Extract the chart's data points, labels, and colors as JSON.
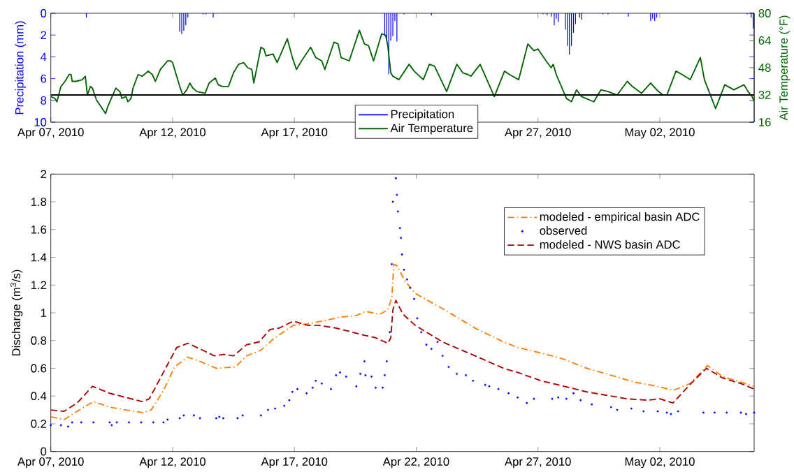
{
  "chart_data": [
    {
      "type": "line",
      "ylabel": "Precipitation (mm)",
      "y2label": "Air Temperature (°F)",
      "xlim": [
        "2010-04-07",
        "2010-05-05T21:00"
      ],
      "xticks": [
        {
          "value": "2010-04-07",
          "label": "Apr 07, 2010"
        },
        {
          "value": "2010-04-12",
          "label": "Apr 12, 2010"
        },
        {
          "value": "2010-04-17",
          "label": "Apr 17, 2010"
        },
        {
          "value": "2010-04-22",
          "label": null
        },
        {
          "value": "2010-04-27",
          "label": "Apr 27, 2010"
        },
        {
          "value": "2010-05-02",
          "label": "May 02, 2010"
        }
      ],
      "ylim": [
        10,
        0
      ],
      "yticks": [
        0,
        2,
        4,
        6,
        8,
        10
      ],
      "y2lim": [
        16,
        80
      ],
      "y2ticks": [
        16,
        32,
        48,
        64,
        80
      ],
      "series": [
        {
          "name": "Precipitation",
          "type": "bar",
          "color": "#0000ff",
          "x": [
            "2010-04-08T11:00",
            "2010-04-12T07:00",
            "2010-04-12T09:00",
            "2010-04-12T11:00",
            "2010-04-12T13:00",
            "2010-04-12T15:00",
            "2010-04-13T06:00",
            "2010-04-13T09:00",
            "2010-04-13T16:00",
            "2010-04-20T17:00",
            "2010-04-20T19:00",
            "2010-04-20T21:00",
            "2010-04-20T23:00",
            "2010-04-21T01:00",
            "2010-04-21T03:00",
            "2010-04-21T05:00",
            "2010-04-21T12:00",
            "2010-04-22T15:00",
            "2010-04-27T05:00",
            "2010-04-27T09:00",
            "2010-04-27T13:00",
            "2010-04-27T16:00",
            "2010-04-27T18:00",
            "2010-04-27T20:00",
            "2010-04-28T03:00",
            "2010-04-28T05:00",
            "2010-04-28T07:00",
            "2010-04-28T09:00",
            "2010-04-28T11:00",
            "2010-04-28T13:00",
            "2010-04-28T17:00",
            "2010-04-28T19:00",
            "2010-04-29T16:00",
            "2010-04-29T21:00",
            "2010-04-30T17:00",
            "2010-05-01T15:00",
            "2010-05-01T17:00",
            "2010-05-01T19:00",
            "2010-05-01T21:00",
            "2010-05-05T14:00",
            "2010-05-05T18:00",
            "2010-05-05T20:00"
          ],
          "values": [
            0.4,
            1.7,
            1.9,
            1.6,
            1.1,
            0.4,
            0.1,
            0.1,
            0.4,
            2.1,
            2.6,
            5.6,
            2.5,
            2.1,
            0.7,
            2.6,
            0.1,
            0.2,
            0.1,
            0.2,
            0.3,
            1.1,
            0.5,
            0.8,
            1.5,
            3.0,
            3.8,
            3.0,
            1.8,
            1.0,
            0.4,
            0.6,
            0.1,
            0.1,
            0.3,
            0.7,
            0.5,
            0.7,
            0.4,
            0.1,
            0.4,
            1.4
          ]
        },
        {
          "name": "Air Temperature",
          "axis": "y2",
          "color": "#006400",
          "x": [
            "2010-04-07T00:00",
            "2010-04-07T04:00",
            "2010-04-07T06:00",
            "2010-04-07T10:00",
            "2010-04-07T14:00",
            "2010-04-07T18:00",
            "2010-04-07T20:00",
            "2010-04-07T21:00",
            "2010-04-08T01:00",
            "2010-04-08T07:00",
            "2010-04-08T10:00",
            "2010-04-08T12:00",
            "2010-04-08T15:00",
            "2010-04-08T17:00",
            "2010-04-08T21:00",
            "2010-04-09T06:00",
            "2010-04-09T08:00",
            "2010-04-09T16:00",
            "2010-04-09T20:00",
            "2010-04-09T22:00",
            "2010-04-10T02:00",
            "2010-04-10T04:00",
            "2010-04-10T07:00",
            "2010-04-10T09:00",
            "2010-04-10T14:00",
            "2010-04-10T18:00",
            "2010-04-11T00:00",
            "2010-04-11T04:00",
            "2010-04-11T07:00",
            "2010-04-11T12:00",
            "2010-04-11T19:00",
            "2010-04-11T22:00",
            "2010-04-12T00:00",
            "2010-04-12T04:00",
            "2010-04-12T07:00",
            "2010-04-12T10:00",
            "2010-04-12T14:00",
            "2010-04-12T17:00",
            "2010-04-12T20:00",
            "2010-04-13T00:00",
            "2010-04-13T08:00",
            "2010-04-13T12:00",
            "2010-04-13T18:00",
            "2010-04-13T21:00",
            "2010-04-14T01:00",
            "2010-04-14T07:00",
            "2010-04-14T12:00",
            "2010-04-14T17:00",
            "2010-04-14T22:00",
            "2010-04-15T02:00",
            "2010-04-15T06:00",
            "2010-04-15T08:00",
            "2010-04-15T15:00",
            "2010-04-15T18:00",
            "2010-04-15T20:00",
            "2010-04-16T03:00",
            "2010-04-16T07:00",
            "2010-04-16T17:00",
            "2010-04-16T22:00",
            "2010-04-17T02:00",
            "2010-04-17T07:00",
            "2010-04-17T16:00",
            "2010-04-17T21:00",
            "2010-04-18T03:00",
            "2010-04-18T06:00",
            "2010-04-18T15:00",
            "2010-04-18T19:00",
            "2010-04-18T22:00",
            "2010-04-19T06:00",
            "2010-04-19T16:00",
            "2010-04-19T21:00",
            "2010-04-20T01:00",
            "2010-04-20T06:00",
            "2010-04-20T14:00",
            "2010-04-20T18:00",
            "2010-04-20T20:00",
            "2010-04-20T23:00",
            "2010-04-21T01:00",
            "2010-04-21T07:00",
            "2010-04-21T17:00",
            "2010-04-21T22:00",
            "2010-04-22T07:00",
            "2010-04-22T13:00",
            "2010-04-22T18:00",
            "2010-04-23T06:00",
            "2010-04-23T16:00",
            "2010-04-23T22:00",
            "2010-04-24T03:00",
            "2010-04-24T06:00",
            "2010-04-24T15:00",
            "2010-04-25T05:00",
            "2010-04-25T15:00",
            "2010-04-25T20:00",
            "2010-04-26T05:00",
            "2010-04-26T14:00",
            "2010-04-26T20:00",
            "2010-04-27T00:00",
            "2010-04-27T08:00",
            "2010-04-27T13:00",
            "2010-04-27T15:00",
            "2010-04-27T18:00",
            "2010-04-28T04:00",
            "2010-04-28T09:00",
            "2010-04-28T14:00",
            "2010-04-28T19:00",
            "2010-04-29T07:00",
            "2010-04-29T14:00",
            "2010-04-29T21:00",
            "2010-04-30T06:00",
            "2010-04-30T16:00",
            "2010-04-30T21:00",
            "2010-05-01T06:00",
            "2010-05-01T15:00",
            "2010-05-01T21:00",
            "2010-05-02T03:00",
            "2010-05-02T07:00",
            "2010-05-02T16:00",
            "2010-05-02T22:00",
            "2010-05-03T06:00",
            "2010-05-03T16:00",
            "2010-05-03T20:00",
            "2010-05-04T07:00",
            "2010-05-04T16:00",
            "2010-05-05T01:00",
            "2010-05-05T11:00",
            "2010-05-05T15:00",
            "2010-05-05T19:00",
            "2010-05-05T21:00"
          ],
          "values": [
            31,
            30,
            28,
            37,
            40,
            44,
            44,
            40,
            40,
            41,
            43,
            32,
            37,
            36,
            29,
            21,
            25,
            36,
            34,
            30,
            31,
            28,
            30,
            36,
            44,
            43,
            46,
            44,
            40,
            47,
            52,
            52,
            51,
            43,
            37,
            32,
            35,
            39,
            36,
            34,
            33,
            39,
            42,
            38,
            37,
            37,
            45,
            50,
            51,
            48,
            47,
            39,
            60,
            59,
            55,
            56,
            51,
            65,
            54,
            47,
            52,
            60,
            54,
            52,
            47,
            63,
            62,
            54,
            52,
            70,
            62,
            61,
            52,
            68,
            67,
            61,
            45,
            43,
            41,
            50,
            46,
            41,
            50,
            49,
            34,
            50,
            45,
            44,
            43,
            50,
            31,
            46,
            44,
            41,
            62,
            58,
            59,
            52,
            48,
            50,
            44,
            30,
            28,
            35,
            31,
            28,
            35,
            34,
            32,
            40,
            37,
            33,
            39,
            35,
            32,
            32,
            46,
            44,
            41,
            54,
            41,
            24,
            38,
            35,
            38,
            34,
            31,
            28
          ]
        }
      ],
      "ref_lines": [
        {
          "axis": "y2",
          "value": 32,
          "color": "#000000"
        }
      ],
      "legend": "bottom"
    },
    {
      "type": "line",
      "ylabel": "Discharge (m$^{3}$/s)",
      "xlim": [
        "2010-04-07",
        "2010-05-05T21:00"
      ],
      "xticks": [
        {
          "value": "2010-04-07",
          "label": "Apr 07, 2010"
        },
        {
          "value": "2010-04-12",
          "label": "Apr 12, 2010"
        },
        {
          "value": "2010-04-17",
          "label": "Apr 17, 2010"
        },
        {
          "value": "2010-04-22",
          "label": "Apr 22, 2010"
        },
        {
          "value": "2010-04-27",
          "label": "Apr 27, 2010"
        },
        {
          "value": "2010-05-02",
          "label": "May 02, 2010"
        }
      ],
      "ylim": [
        0,
        2
      ],
      "yticks": [
        0,
        0.2,
        0.4,
        0.6,
        0.8,
        1,
        1.2,
        1.4,
        1.6,
        1.8,
        2
      ],
      "series": [
        {
          "name": "modeled - empirical basin ADC",
          "line_style": "dashdot",
          "color": "#ff8000",
          "x": [
            "2010-04-07T00:00",
            "2010-04-07T13:00",
            "2010-04-08T02:00",
            "2010-04-08T18:00",
            "2010-04-09T10:00",
            "2010-04-10T02:00",
            "2010-04-10T19:00",
            "2010-04-11T03:00",
            "2010-04-11T15:00",
            "2010-04-12T02:00",
            "2010-04-12T15:00",
            "2010-04-13T03:00",
            "2010-04-13T19:00",
            "2010-04-14T14:00",
            "2010-04-15T01:00",
            "2010-04-15T15:00",
            "2010-04-16T03:00",
            "2010-04-16T09:00",
            "2010-04-16T23:00",
            "2010-04-17T13:00",
            "2010-04-18T03:00",
            "2010-04-18T23:00",
            "2010-04-19T13:00",
            "2010-04-19T22:00",
            "2010-04-20T12:00",
            "2010-04-20T20:00",
            "2010-04-21T00:00",
            "2010-04-21T02:00",
            "2010-04-21T05:00",
            "2010-04-21T13:00",
            "2010-04-21T23:00",
            "2010-04-23T02:00",
            "2010-04-24T10:00",
            "2010-04-25T14:00",
            "2010-04-26T04:00",
            "2010-04-27T03:00",
            "2010-04-28T00:00",
            "2010-04-29T00:00",
            "2010-04-30T00:00",
            "2010-04-30T23:00",
            "2010-05-01T22:00",
            "2010-05-02T13:00",
            "2010-05-03T06:00",
            "2010-05-03T23:00",
            "2010-05-04T14:00",
            "2010-05-05T08:00",
            "2010-05-05T21:00"
          ],
          "values": [
            0.25,
            0.23,
            0.29,
            0.36,
            0.32,
            0.3,
            0.28,
            0.3,
            0.44,
            0.61,
            0.68,
            0.65,
            0.6,
            0.61,
            0.69,
            0.73,
            0.81,
            0.84,
            0.91,
            0.92,
            0.94,
            0.97,
            0.98,
            1.01,
            0.99,
            1.02,
            1.11,
            1.35,
            1.34,
            1.23,
            1.14,
            1.03,
            0.89,
            0.79,
            0.75,
            0.71,
            0.67,
            0.6,
            0.55,
            0.5,
            0.47,
            0.44,
            0.49,
            0.62,
            0.54,
            0.5,
            0.47
          ]
        },
        {
          "name": "observed",
          "type": "scatter",
          "marker": "circle",
          "color": "#0000ff",
          "x": [
            "2010-04-07T00:00",
            "2010-04-07T10:00",
            "2010-04-07T17:00",
            "2010-04-07T21:00",
            "2010-04-08T06:00",
            "2010-04-08T18:00",
            "2010-04-09T10:00",
            "2010-04-09T12:00",
            "2010-04-09T17:00",
            "2010-04-10T05:00",
            "2010-04-10T17:00",
            "2010-04-11T05:00",
            "2010-04-11T15:00",
            "2010-04-11T19:00",
            "2010-04-12T07:00",
            "2010-04-12T11:00",
            "2010-04-12T21:00",
            "2010-04-13T03:00",
            "2010-04-13T19:00",
            "2010-04-13T22:00",
            "2010-04-14T02:00",
            "2010-04-14T16:00",
            "2010-04-14T21:00",
            "2010-04-15T15:00",
            "2010-04-15T22:00",
            "2010-04-16T05:00",
            "2010-04-16T14:00",
            "2010-04-16T19:00",
            "2010-04-16T22:00",
            "2010-04-17T03:00",
            "2010-04-17T12:00",
            "2010-04-17T18:00",
            "2010-04-17T21:00",
            "2010-04-18T03:00",
            "2010-04-18T12:00",
            "2010-04-18T17:00",
            "2010-04-18T21:00",
            "2010-04-19T03:00",
            "2010-04-19T13:00",
            "2010-04-19T17:00",
            "2010-04-19T21:00",
            "2010-04-19T22:00",
            "2010-04-20T04:00",
            "2010-04-20T08:00",
            "2010-04-20T15:00",
            "2010-04-20T17:00",
            "2010-04-20T19:00",
            "2010-04-20T22:00",
            "2010-04-21T00:00",
            "2010-04-21T01:00",
            "2010-04-21T04:00",
            "2010-04-21T05:00",
            "2010-04-21T06:00",
            "2010-04-21T08:00",
            "2010-04-21T09:00",
            "2010-04-21T10:00",
            "2010-04-21T12:00",
            "2010-04-21T15:00",
            "2010-04-21T18:00",
            "2010-04-21T22:00",
            "2010-04-22T01:00",
            "2010-04-22T05:00",
            "2010-04-22T10:00",
            "2010-04-22T15:00",
            "2010-04-22T21:00",
            "2010-04-23T02:00",
            "2010-04-23T08:00",
            "2010-04-23T16:00",
            "2010-04-24T01:00",
            "2010-04-24T08:00",
            "2010-04-24T20:00",
            "2010-04-25T00:00",
            "2010-04-25T09:00",
            "2010-04-25T19:00",
            "2010-04-26T04:00",
            "2010-04-26T13:00",
            "2010-04-26T20:00",
            "2010-04-27T14:00",
            "2010-04-27T20:00",
            "2010-04-28T04:00",
            "2010-04-28T11:00",
            "2010-04-28T18:00",
            "2010-04-29T05:00",
            "2010-04-30T00:00",
            "2010-04-30T06:00",
            "2010-04-30T20:00",
            "2010-05-01T08:00",
            "2010-05-01T22:00",
            "2010-05-02T07:00",
            "2010-05-02T11:00",
            "2010-05-02T18:00",
            "2010-05-03T19:00",
            "2010-05-04T06:00",
            "2010-05-04T18:00",
            "2010-05-05T08:00",
            "2010-05-05T13:00",
            "2010-05-05T21:00"
          ],
          "values": [
            0.19,
            0.19,
            0.18,
            0.21,
            0.21,
            0.21,
            0.21,
            0.19,
            0.21,
            0.21,
            0.21,
            0.21,
            0.21,
            0.23,
            0.24,
            0.26,
            0.26,
            0.24,
            0.24,
            0.25,
            0.24,
            0.24,
            0.26,
            0.26,
            0.3,
            0.31,
            0.33,
            0.37,
            0.43,
            0.45,
            0.42,
            0.46,
            0.51,
            0.49,
            0.45,
            0.55,
            0.57,
            0.54,
            0.47,
            0.56,
            0.65,
            0.55,
            0.54,
            0.46,
            0.46,
            0.55,
            0.65,
            0.86,
            1.35,
            1.8,
            1.97,
            1.85,
            1.73,
            1.61,
            1.54,
            1.42,
            1.31,
            1.24,
            1.18,
            1.1,
            0.96,
            0.86,
            0.77,
            0.74,
            0.79,
            0.69,
            0.61,
            0.56,
            0.55,
            0.51,
            0.48,
            0.47,
            0.45,
            0.42,
            0.39,
            0.35,
            0.38,
            0.38,
            0.39,
            0.38,
            0.42,
            0.37,
            0.34,
            0.32,
            0.3,
            0.31,
            0.29,
            0.29,
            0.28,
            0.27,
            0.29,
            0.28,
            0.28,
            0.28,
            0.28,
            0.27,
            0.28
          ]
        },
        {
          "name": "modeled - NWS basin ADC",
          "line_style": "dashed",
          "color": "#aa0000",
          "x": [
            "2010-04-07T00:00",
            "2010-04-07T13:00",
            "2010-04-08T02:00",
            "2010-04-08T17:00",
            "2010-04-09T10:00",
            "2010-04-10T02:00",
            "2010-04-10T18:00",
            "2010-04-11T01:00",
            "2010-04-11T12:00",
            "2010-04-12T04:00",
            "2010-04-12T15:00",
            "2010-04-13T03:00",
            "2010-04-13T17:00",
            "2010-04-14T02:00",
            "2010-04-14T12:00",
            "2010-04-15T01:00",
            "2010-04-15T13:00",
            "2010-04-16T00:00",
            "2010-04-16T09:00",
            "2010-04-16T23:00",
            "2010-04-17T13:00",
            "2010-04-18T00:00",
            "2010-04-18T17:00",
            "2010-04-19T20:00",
            "2010-04-20T08:00",
            "2010-04-20T20:00",
            "2010-04-20T23:00",
            "2010-04-21T01:00",
            "2010-04-21T04:00",
            "2010-04-21T11:00",
            "2010-04-21T23:00",
            "2010-04-23T02:00",
            "2010-04-24T10:00",
            "2010-04-25T14:00",
            "2010-04-26T04:00",
            "2010-04-27T03:00",
            "2010-04-28T02:00",
            "2010-04-29T00:00",
            "2010-04-30T00:00",
            "2010-04-30T16:00",
            "2010-05-01T12:00",
            "2010-05-02T00:00",
            "2010-05-02T13:00",
            "2010-05-03T08:00",
            "2010-05-03T22:00",
            "2010-05-04T14:00",
            "2010-05-05T08:00",
            "2010-05-05T21:00"
          ],
          "values": [
            0.3,
            0.29,
            0.35,
            0.47,
            0.42,
            0.39,
            0.36,
            0.38,
            0.53,
            0.75,
            0.78,
            0.74,
            0.69,
            0.7,
            0.69,
            0.77,
            0.79,
            0.88,
            0.89,
            0.94,
            0.91,
            0.91,
            0.89,
            0.84,
            0.82,
            0.78,
            0.82,
            1.02,
            1.09,
            0.99,
            0.91,
            0.79,
            0.69,
            0.6,
            0.57,
            0.51,
            0.47,
            0.43,
            0.4,
            0.38,
            0.37,
            0.38,
            0.35,
            0.5,
            0.6,
            0.53,
            0.49,
            0.45
          ]
        }
      ],
      "legend": "top right"
    }
  ]
}
